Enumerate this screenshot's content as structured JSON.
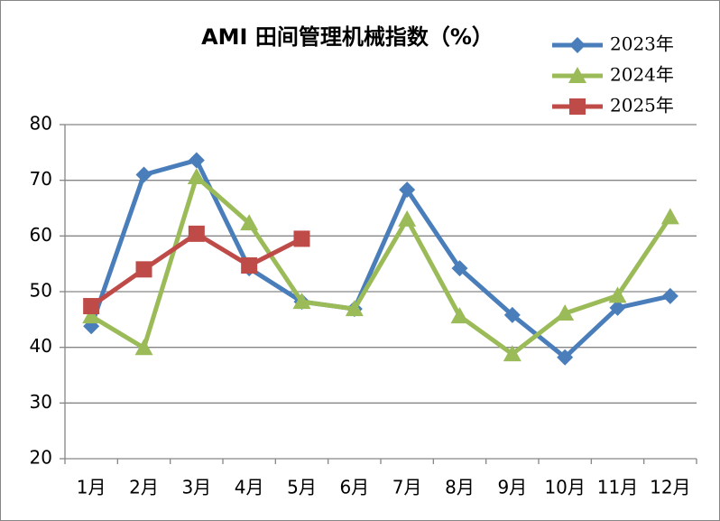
{
  "chart_data": {
    "type": "line",
    "title": "AMI 田间管理机械指数（%）",
    "categories": [
      "1月",
      "2月",
      "3月",
      "4月",
      "5月",
      "6月",
      "7月",
      "8月",
      "9月",
      "10月",
      "11月",
      "12月"
    ],
    "series": [
      {
        "name": "2023年",
        "color": "#4a7ebb",
        "marker": "diamond",
        "values": [
          43.8,
          71,
          73.6,
          54.2,
          48.2,
          46.9,
          68.3,
          54.2,
          45.8,
          38.2,
          47.1,
          49.2
        ]
      },
      {
        "name": "2024年",
        "color": "#9bbb59",
        "marker": "triangle",
        "values": [
          45.6,
          39.9,
          70.6,
          62.3,
          48.2,
          46.9,
          63,
          45.6,
          38.8,
          46.1,
          49.3,
          63.4
        ]
      },
      {
        "name": "2025年",
        "color": "#be4b48",
        "marker": "square",
        "values": [
          47.4,
          54,
          60.4,
          54.7,
          59.5,
          null,
          null,
          null,
          null,
          null,
          null,
          null
        ]
      }
    ],
    "ylim": [
      20,
      80
    ],
    "yticks": [
      20,
      30,
      40,
      50,
      60,
      70,
      80
    ],
    "grid": true,
    "legend": "top-right"
  }
}
